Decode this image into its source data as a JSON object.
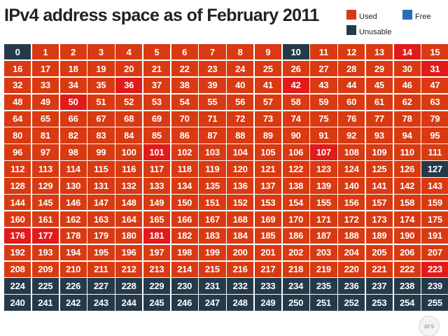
{
  "chart_data": {
    "type": "heatmap",
    "title": "IPv4 address space as of February 2011",
    "start": 0,
    "end": 255,
    "columns": 16,
    "legend": {
      "position": "top-right",
      "items": [
        {
          "status": "used",
          "label": "Used",
          "color": "#d93a12"
        },
        {
          "status": "free",
          "label": "Free",
          "color": "#2a6db5"
        },
        {
          "status": "unusable",
          "label": "Unusable",
          "color": "#243a4a"
        }
      ]
    },
    "unusable_blocks": [
      0,
      10,
      127,
      224,
      225,
      226,
      227,
      228,
      229,
      230,
      231,
      232,
      233,
      234,
      235,
      236,
      237,
      238,
      239,
      240,
      241,
      242,
      243,
      244,
      245,
      246,
      247,
      248,
      249,
      250,
      251,
      252,
      253,
      254,
      255
    ],
    "free_blocks": [],
    "used_blocks_highlighted": [
      14,
      31,
      36,
      42,
      50,
      101,
      107,
      176,
      177,
      181,
      223
    ],
    "colors": {
      "used": "#d93a12",
      "used_highlighted": "#e21a1a",
      "unusable": "#243a4a"
    }
  },
  "branding": {
    "logo": "ars"
  }
}
